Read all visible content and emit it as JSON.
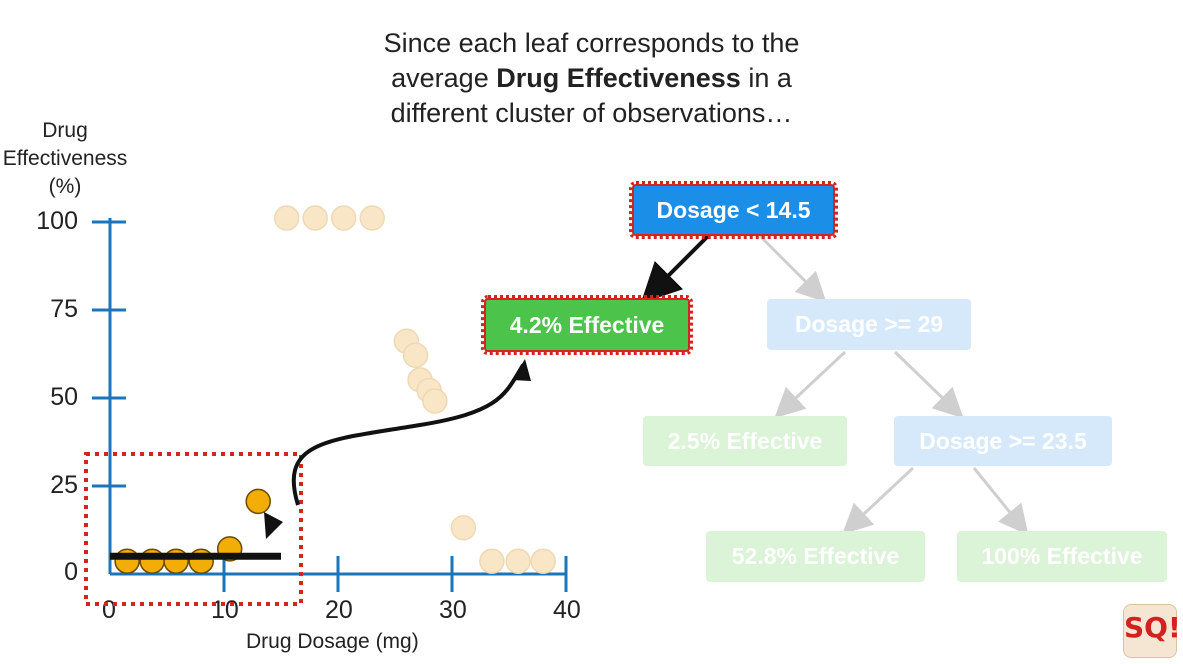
{
  "caption": {
    "line1": "Since each leaf corresponds to the",
    "line2_pre": "average ",
    "line2_bold": "Drug Effectiveness",
    "line2_post": " in a",
    "line3": "different cluster of observations…"
  },
  "chart": {
    "ylabel": [
      "Drug",
      "Effectiveness",
      "(%)"
    ],
    "xlabel": "Drug Dosage (mg)",
    "xticks": [
      "0",
      "10",
      "20",
      "30",
      "40"
    ],
    "yticks": [
      "100",
      "75",
      "50",
      "25",
      "0"
    ]
  },
  "tree": {
    "root": "Dosage < 14.5",
    "leaf_left": "4.2% Effective",
    "node_right": "Dosage >= 29",
    "leaf_2_5": "2.5% Effective",
    "node_23_5": "Dosage >= 23.5",
    "leaf_52_8": "52.8% Effective",
    "leaf_100": "100% Effective"
  },
  "logo": {
    "text": "SQ!"
  },
  "colors": {
    "axis": "#1a75bb",
    "active_point": "#f2ad06",
    "faded_point": "#f8e6c6",
    "selection_box": "#d0261f",
    "leaf_green": "#4cc34a",
    "node_blue": "#1b8ee8"
  },
  "chart_data": {
    "type": "scatter",
    "xlabel": "Drug Dosage (mg)",
    "ylabel": "Drug Effectiveness (%)",
    "xlim": [
      0,
      40
    ],
    "ylim": [
      0,
      100
    ],
    "highlighted_points": [
      {
        "x": 1.5,
        "y": 2.5
      },
      {
        "x": 3.7,
        "y": 2.5
      },
      {
        "x": 5.8,
        "y": 2.5
      },
      {
        "x": 8,
        "y": 2.5
      },
      {
        "x": 10.5,
        "y": 6
      },
      {
        "x": 13,
        "y": 19.5
      }
    ],
    "faded_points": [
      {
        "x": 15.5,
        "y": 100
      },
      {
        "x": 18,
        "y": 100
      },
      {
        "x": 20.5,
        "y": 100
      },
      {
        "x": 23,
        "y": 100
      },
      {
        "x": 26,
        "y": 65
      },
      {
        "x": 26.8,
        "y": 61
      },
      {
        "x": 27.2,
        "y": 54
      },
      {
        "x": 28,
        "y": 51
      },
      {
        "x": 28.5,
        "y": 48
      },
      {
        "x": 31,
        "y": 12
      },
      {
        "x": 33.5,
        "y": 2.5
      },
      {
        "x": 35.8,
        "y": 2.5
      },
      {
        "x": 38,
        "y": 2.5
      }
    ],
    "average_line": {
      "x_start": 0,
      "x_end": 15,
      "y": 4.2
    }
  }
}
